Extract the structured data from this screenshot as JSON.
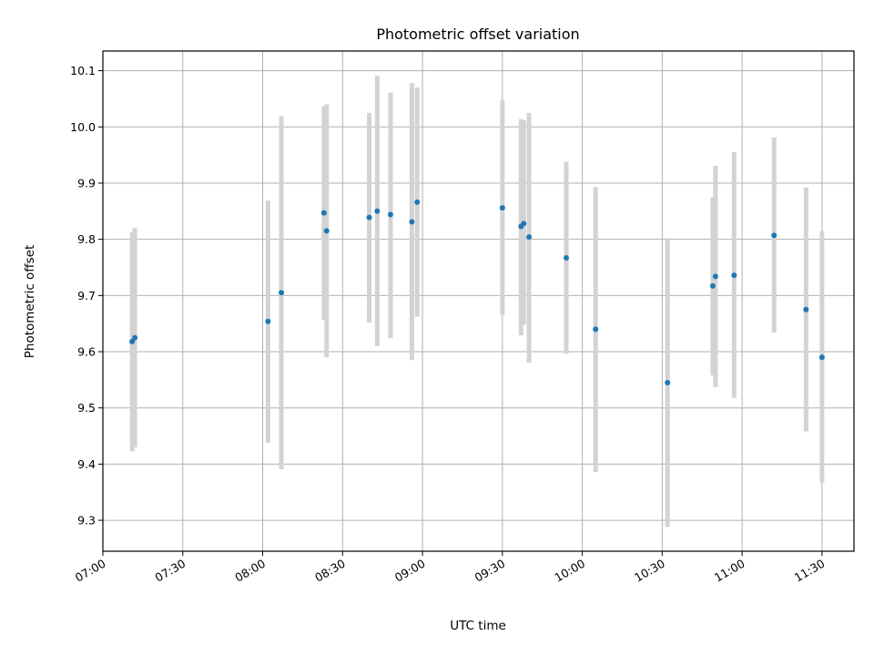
{
  "chart_data": {
    "type": "scatter",
    "title": "Photometric offset variation",
    "xlabel": "UTC time",
    "ylabel": "Photometric offset",
    "x_ticks": [
      "07:00",
      "07:30",
      "08:00",
      "08:30",
      "09:00",
      "09:30",
      "10:00",
      "10:30",
      "11:00",
      "11:30"
    ],
    "y_ticks": [
      "9.3",
      "9.4",
      "9.5",
      "9.6",
      "9.7",
      "9.8",
      "9.9",
      "10.0",
      "10.1"
    ],
    "xlim": [
      "07:00",
      "11:42"
    ],
    "ylim": [
      9.245,
      10.135
    ],
    "grid": true,
    "point_color": "#1f77b4",
    "errorbar_color": "#d3d3d3",
    "points": [
      {
        "x": "07:11",
        "y": 9.618,
        "ymin": 9.423,
        "ymax": 9.813
      },
      {
        "x": "07:12",
        "y": 9.625,
        "ymin": 9.43,
        "ymax": 9.82
      },
      {
        "x": "08:02",
        "y": 9.654,
        "ymin": 9.438,
        "ymax": 9.869
      },
      {
        "x": "08:07",
        "y": 9.705,
        "ymin": 9.391,
        "ymax": 10.019
      },
      {
        "x": "08:23",
        "y": 9.847,
        "ymin": 9.657,
        "ymax": 10.037
      },
      {
        "x": "08:24",
        "y": 9.815,
        "ymin": 9.59,
        "ymax": 10.04
      },
      {
        "x": "08:40",
        "y": 9.839,
        "ymin": 9.652,
        "ymax": 10.025
      },
      {
        "x": "08:43",
        "y": 9.85,
        "ymin": 9.61,
        "ymax": 10.091
      },
      {
        "x": "08:48",
        "y": 9.844,
        "ymin": 9.624,
        "ymax": 10.061
      },
      {
        "x": "08:56",
        "y": 9.831,
        "ymin": 9.585,
        "ymax": 10.078
      },
      {
        "x": "08:58",
        "y": 9.866,
        "ymin": 9.662,
        "ymax": 10.07
      },
      {
        "x": "09:30",
        "y": 9.856,
        "ymin": 9.665,
        "ymax": 10.047
      },
      {
        "x": "09:37",
        "y": 9.823,
        "ymin": 9.629,
        "ymax": 10.014
      },
      {
        "x": "09:38",
        "y": 9.828,
        "ymin": 9.648,
        "ymax": 10.012
      },
      {
        "x": "09:40",
        "y": 9.804,
        "ymin": 9.58,
        "ymax": 10.025
      },
      {
        "x": "09:54",
        "y": 9.767,
        "ymin": 9.596,
        "ymax": 9.938
      },
      {
        "x": "10:05",
        "y": 9.64,
        "ymin": 9.386,
        "ymax": 9.893
      },
      {
        "x": "10:32",
        "y": 9.545,
        "ymin": 9.288,
        "ymax": 9.802
      },
      {
        "x": "10:49",
        "y": 9.717,
        "ymin": 9.558,
        "ymax": 9.875
      },
      {
        "x": "10:50",
        "y": 9.734,
        "ymin": 9.537,
        "ymax": 9.931
      },
      {
        "x": "10:57",
        "y": 9.736,
        "ymin": 9.518,
        "ymax": 9.955
      },
      {
        "x": "11:12",
        "y": 9.807,
        "ymin": 9.634,
        "ymax": 9.981
      },
      {
        "x": "11:24",
        "y": 9.675,
        "ymin": 9.458,
        "ymax": 9.892
      },
      {
        "x": "11:30",
        "y": 9.59,
        "ymin": 9.367,
        "ymax": 9.814
      }
    ]
  }
}
